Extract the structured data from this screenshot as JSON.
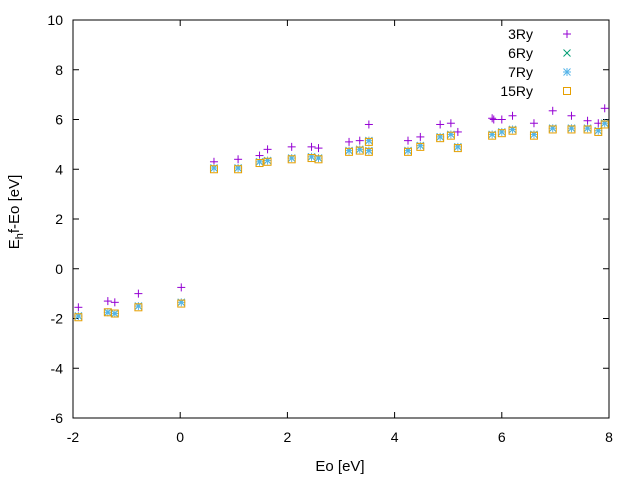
{
  "chart_data": {
    "type": "scatter",
    "xlabel": "Eo [eV]",
    "ylabel": {
      "main": "E",
      "sub": "h",
      "rest": "f-Eo [eV]"
    },
    "xlim": [
      -2,
      8
    ],
    "ylim": [
      -6,
      10
    ],
    "x_ticks": [
      "-2",
      "0",
      "2",
      "4",
      "6",
      "8"
    ],
    "y_ticks": [
      "-6",
      "-4",
      "-2",
      "0",
      "2",
      "4",
      "6",
      "8",
      "10"
    ],
    "legend_position": "top-right",
    "series": [
      {
        "name": "3Ry",
        "marker": "plus",
        "color": "#9400d3",
        "x": [
          -1.9,
          -1.35,
          -1.22,
          -0.78,
          0.02,
          0.63,
          1.08,
          1.48,
          1.63,
          2.08,
          2.45,
          2.58,
          3.15,
          3.35,
          3.52,
          4.25,
          4.48,
          4.85,
          5.05,
          5.18,
          5.82,
          5.85,
          6.0,
          6.2,
          6.6,
          6.95,
          7.3,
          7.6,
          7.8,
          7.92
        ],
        "y": [
          -1.55,
          -1.3,
          -1.35,
          -1.0,
          -0.75,
          4.3,
          4.4,
          4.55,
          4.8,
          4.9,
          4.9,
          4.85,
          5.1,
          5.15,
          5.8,
          5.15,
          5.3,
          5.8,
          5.85,
          5.5,
          6.05,
          6.0,
          6.0,
          6.15,
          5.85,
          6.35,
          6.15,
          5.95,
          5.85,
          6.45
        ]
      },
      {
        "name": "6Ry",
        "marker": "x",
        "color": "#009e73",
        "x": [
          -1.9,
          -1.35,
          -1.22,
          -0.78,
          0.02,
          0.63,
          1.08,
          1.48,
          1.63,
          2.08,
          2.45,
          2.58,
          3.15,
          3.35,
          3.52,
          3.52,
          4.25,
          4.48,
          4.85,
          5.05,
          5.18,
          5.82,
          6.0,
          6.2,
          6.6,
          6.95,
          7.3,
          7.6,
          7.8,
          7.92
        ],
        "y": [
          -1.9,
          -1.75,
          -1.8,
          -1.5,
          -1.35,
          4.05,
          4.05,
          4.3,
          4.35,
          4.45,
          4.5,
          4.45,
          4.75,
          4.8,
          4.75,
          5.15,
          4.75,
          4.95,
          5.3,
          5.4,
          4.9,
          5.4,
          5.5,
          5.6,
          5.4,
          5.65,
          5.65,
          5.65,
          5.55,
          5.85
        ]
      },
      {
        "name": "7Ry",
        "marker": "star",
        "color": "#56b4e9",
        "x": [
          -1.9,
          -1.35,
          -1.22,
          -0.78,
          0.02,
          0.63,
          1.08,
          1.48,
          1.63,
          2.08,
          2.45,
          2.58,
          3.15,
          3.35,
          3.52,
          3.52,
          4.25,
          4.48,
          4.85,
          5.05,
          5.18,
          5.82,
          6.0,
          6.2,
          6.6,
          6.95,
          7.3,
          7.6,
          7.8,
          7.92
        ],
        "y": [
          -1.9,
          -1.75,
          -1.8,
          -1.5,
          -1.35,
          4.05,
          4.05,
          4.3,
          4.35,
          4.45,
          4.5,
          4.45,
          4.75,
          4.8,
          4.75,
          5.15,
          4.75,
          4.95,
          5.3,
          5.4,
          4.9,
          5.4,
          5.5,
          5.6,
          5.4,
          5.65,
          5.65,
          5.65,
          5.55,
          5.85
        ]
      },
      {
        "name": "15Ry",
        "marker": "square",
        "color": "#e69f00",
        "x": [
          -1.9,
          -1.35,
          -1.22,
          -0.78,
          0.02,
          0.63,
          1.08,
          1.48,
          1.63,
          2.08,
          2.45,
          2.58,
          3.15,
          3.35,
          3.52,
          3.52,
          4.25,
          4.48,
          4.85,
          5.05,
          5.18,
          5.82,
          6.0,
          6.2,
          6.6,
          6.95,
          7.3,
          7.6,
          7.8,
          7.92
        ],
        "y": [
          -1.95,
          -1.75,
          -1.8,
          -1.55,
          -1.4,
          4.0,
          4.0,
          4.25,
          4.3,
          4.4,
          4.45,
          4.4,
          4.7,
          4.75,
          4.7,
          5.1,
          4.7,
          4.9,
          5.25,
          5.35,
          4.85,
          5.35,
          5.45,
          5.55,
          5.35,
          5.6,
          5.6,
          5.6,
          5.5,
          5.8
        ]
      }
    ]
  }
}
